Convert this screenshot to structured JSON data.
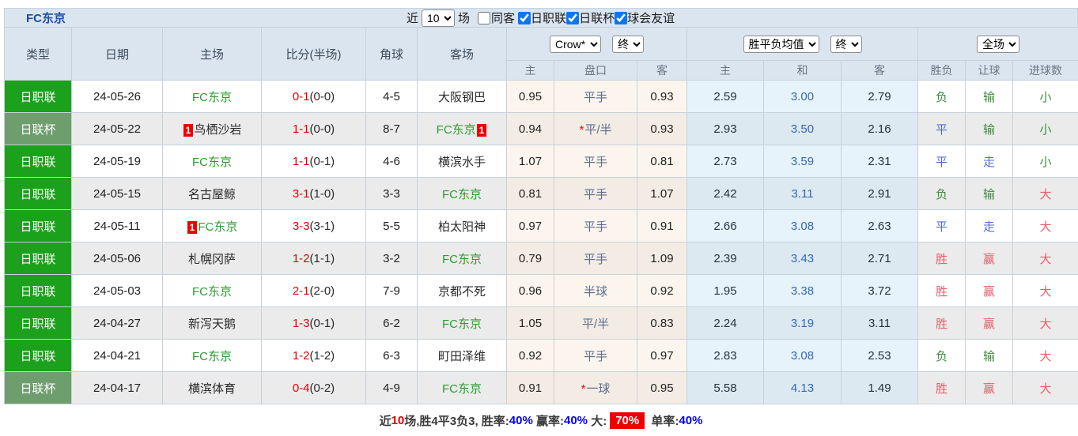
{
  "colors": {
    "accent_blue": "#0b76ef",
    "league_green": "#1ba11b",
    "cup_green": "#6e9e6e",
    "team_green": "#2e9b2e",
    "score_red": "#e60000",
    "win_red": "#e4606a",
    "loss_green": "#3f8a3f",
    "draw_blue": "#4f6bd5",
    "mean_blue": "#3668b8",
    "badge_red": "#ee0000",
    "link_blue": "#0000ee"
  },
  "topbar": {
    "title": "FC东京",
    "recent_label": "近",
    "recent_value": "10",
    "games_label": "场",
    "same_opponent_label": "同客",
    "same_opponent_checked": false,
    "filters": [
      {
        "label": "日职联",
        "checked": true
      },
      {
        "label": "日联杯",
        "checked": true
      },
      {
        "label": "球会友谊",
        "checked": true
      }
    ]
  },
  "header": {
    "cols": {
      "type": "类型",
      "date": "日期",
      "home": "主场",
      "score": "比分(半场)",
      "corner": "角球",
      "away": "客场"
    },
    "crow_company": "Crow*",
    "crow_period": "终",
    "mean_company": "胜平负均值",
    "mean_period": "终",
    "scope": "全场",
    "sub": {
      "crow_home": "主",
      "handicap": "盘口",
      "crow_away": "客",
      "mean_home": "主",
      "mean_draw": "和",
      "mean_away": "客",
      "result": "胜负",
      "handicap_result": "让球",
      "goals": "进球数"
    }
  },
  "table": {
    "rows": [
      {
        "type": "日职联",
        "type_class": "league",
        "date": "24-05-26",
        "home": {
          "name": "FC东京",
          "green": true,
          "badge": null
        },
        "score_ft": "0-1",
        "score_ht": "(0-0)",
        "corner": "4-5",
        "away": {
          "name": "大阪钢巴",
          "green": false,
          "badge": null
        },
        "crow_home": "0.95",
        "handicap": "平手",
        "handicap_star": false,
        "crow_away": "0.93",
        "mean_home": "2.59",
        "mean_draw": "3.00",
        "mean_away": "2.79",
        "result": {
          "text": "负",
          "color": "green"
        },
        "handicap_result": {
          "text": "输",
          "color": "green"
        },
        "goals_result": {
          "text": "小",
          "color": "green"
        }
      },
      {
        "type": "日联杯",
        "type_class": "cup",
        "date": "24-05-22",
        "home": {
          "name": "鸟栖沙岩",
          "green": false,
          "badge": {
            "text": "1",
            "pos": "before"
          }
        },
        "score_ft": "1-1",
        "score_ht": "(0-0)",
        "corner": "8-7",
        "away": {
          "name": "FC东京",
          "green": true,
          "badge": {
            "text": "1",
            "pos": "after"
          }
        },
        "crow_home": "0.94",
        "handicap": "平/半",
        "handicap_star": true,
        "crow_away": "0.93",
        "mean_home": "2.93",
        "mean_draw": "3.50",
        "mean_away": "2.16",
        "result": {
          "text": "平",
          "color": "blue"
        },
        "handicap_result": {
          "text": "输",
          "color": "green"
        },
        "goals_result": {
          "text": "小",
          "color": "green"
        }
      },
      {
        "type": "日职联",
        "type_class": "league",
        "date": "24-05-19",
        "home": {
          "name": "FC东京",
          "green": true,
          "badge": null
        },
        "score_ft": "1-1",
        "score_ht": "(0-1)",
        "corner": "4-6",
        "away": {
          "name": "横滨水手",
          "green": false,
          "badge": null
        },
        "crow_home": "1.07",
        "handicap": "平手",
        "handicap_star": false,
        "crow_away": "0.81",
        "mean_home": "2.73",
        "mean_draw": "3.59",
        "mean_away": "2.31",
        "result": {
          "text": "平",
          "color": "blue"
        },
        "handicap_result": {
          "text": "走",
          "color": "blue"
        },
        "goals_result": {
          "text": "小",
          "color": "green"
        }
      },
      {
        "type": "日职联",
        "type_class": "league",
        "date": "24-05-15",
        "home": {
          "name": "名古屋鲸",
          "green": false,
          "badge": null
        },
        "score_ft": "3-1",
        "score_ht": "(1-0)",
        "corner": "3-3",
        "away": {
          "name": "FC东京",
          "green": true,
          "badge": null
        },
        "crow_home": "0.81",
        "handicap": "平手",
        "handicap_star": false,
        "crow_away": "1.07",
        "mean_home": "2.42",
        "mean_draw": "3.11",
        "mean_away": "2.91",
        "result": {
          "text": "负",
          "color": "green"
        },
        "handicap_result": {
          "text": "输",
          "color": "green"
        },
        "goals_result": {
          "text": "大",
          "color": "red"
        }
      },
      {
        "type": "日职联",
        "type_class": "league",
        "date": "24-05-11",
        "home": {
          "name": "FC东京",
          "green": true,
          "badge": {
            "text": "1",
            "pos": "before"
          }
        },
        "score_ft": "3-3",
        "score_ht": "(3-1)",
        "corner": "5-5",
        "away": {
          "name": "柏太阳神",
          "green": false,
          "badge": null
        },
        "crow_home": "0.97",
        "handicap": "平手",
        "handicap_star": false,
        "crow_away": "0.91",
        "mean_home": "2.66",
        "mean_draw": "3.08",
        "mean_away": "2.63",
        "result": {
          "text": "平",
          "color": "blue"
        },
        "handicap_result": {
          "text": "走",
          "color": "blue"
        },
        "goals_result": {
          "text": "大",
          "color": "red"
        }
      },
      {
        "type": "日职联",
        "type_class": "league",
        "date": "24-05-06",
        "home": {
          "name": "札幌冈萨",
          "green": false,
          "badge": null
        },
        "score_ft": "1-2",
        "score_ht": "(1-1)",
        "corner": "3-2",
        "away": {
          "name": "FC东京",
          "green": true,
          "badge": null
        },
        "crow_home": "0.79",
        "handicap": "平手",
        "handicap_star": false,
        "crow_away": "1.09",
        "mean_home": "2.39",
        "mean_draw": "3.43",
        "mean_away": "2.71",
        "result": {
          "text": "胜",
          "color": "red"
        },
        "handicap_result": {
          "text": "赢",
          "color": "red"
        },
        "goals_result": {
          "text": "大",
          "color": "red"
        }
      },
      {
        "type": "日职联",
        "type_class": "league",
        "date": "24-05-03",
        "home": {
          "name": "FC东京",
          "green": true,
          "badge": null
        },
        "score_ft": "2-1",
        "score_ht": "(2-0)",
        "corner": "7-9",
        "away": {
          "name": "京都不死",
          "green": false,
          "badge": null
        },
        "crow_home": "0.96",
        "handicap": "半球",
        "handicap_star": false,
        "crow_away": "0.92",
        "mean_home": "1.95",
        "mean_draw": "3.38",
        "mean_away": "3.72",
        "result": {
          "text": "胜",
          "color": "red"
        },
        "handicap_result": {
          "text": "赢",
          "color": "red"
        },
        "goals_result": {
          "text": "大",
          "color": "red"
        }
      },
      {
        "type": "日职联",
        "type_class": "league",
        "date": "24-04-27",
        "home": {
          "name": "新泻天鹅",
          "green": false,
          "badge": null
        },
        "score_ft": "1-3",
        "score_ht": "(0-1)",
        "corner": "6-2",
        "away": {
          "name": "FC东京",
          "green": true,
          "badge": null
        },
        "crow_home": "1.05",
        "handicap": "平/半",
        "handicap_star": false,
        "crow_away": "0.83",
        "mean_home": "2.24",
        "mean_draw": "3.19",
        "mean_away": "3.11",
        "result": {
          "text": "胜",
          "color": "red"
        },
        "handicap_result": {
          "text": "赢",
          "color": "red"
        },
        "goals_result": {
          "text": "大",
          "color": "red"
        }
      },
      {
        "type": "日职联",
        "type_class": "league",
        "date": "24-04-21",
        "home": {
          "name": "FC东京",
          "green": true,
          "badge": null
        },
        "score_ft": "1-2",
        "score_ht": "(1-2)",
        "corner": "6-3",
        "away": {
          "name": "町田泽维",
          "green": false,
          "badge": null
        },
        "crow_home": "0.92",
        "handicap": "平手",
        "handicap_star": false,
        "crow_away": "0.97",
        "mean_home": "2.83",
        "mean_draw": "3.08",
        "mean_away": "2.53",
        "result": {
          "text": "负",
          "color": "green"
        },
        "handicap_result": {
          "text": "输",
          "color": "green"
        },
        "goals_result": {
          "text": "大",
          "color": "red"
        }
      },
      {
        "type": "日联杯",
        "type_class": "cup",
        "date": "24-04-17",
        "home": {
          "name": "横滨体育",
          "green": false,
          "badge": null
        },
        "score_ft": "0-4",
        "score_ht": "(0-2)",
        "corner": "4-9",
        "away": {
          "name": "FC东京",
          "green": true,
          "badge": null
        },
        "crow_home": "0.91",
        "handicap": "一球",
        "handicap_star": true,
        "crow_away": "0.95",
        "mean_home": "5.58",
        "mean_draw": "4.13",
        "mean_away": "1.49",
        "result": {
          "text": "胜",
          "color": "red"
        },
        "handicap_result": {
          "text": "赢",
          "color": "red"
        },
        "goals_result": {
          "text": "大",
          "color": "red"
        }
      }
    ]
  },
  "summary": {
    "segments": [
      {
        "text": "近",
        "style": "plain"
      },
      {
        "text": "10",
        "style": "red"
      },
      {
        "text": "场,胜4平3负3, 胜率:",
        "style": "plain"
      },
      {
        "text": "40%",
        "style": "blue"
      },
      {
        "text": " 赢率:",
        "style": "plain"
      },
      {
        "text": "40%",
        "style": "blue"
      },
      {
        "text": " 大:",
        "style": "plain"
      },
      {
        "text": "70%",
        "style": "badge"
      },
      {
        "text": " 单率:",
        "style": "plain"
      },
      {
        "text": "40%",
        "style": "blue"
      }
    ]
  }
}
